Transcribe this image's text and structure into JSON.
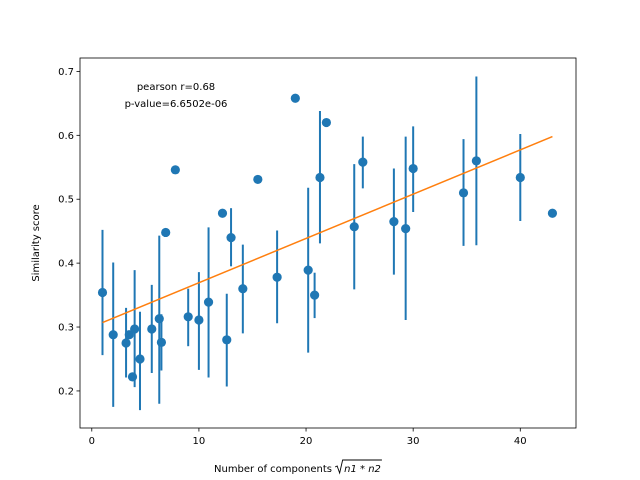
{
  "chart_data": {
    "type": "scatter",
    "xlabel_prefix": "Number of components ",
    "xlabel_radicand": "n1 * n2",
    "ylabel": "Similarity score",
    "annotation_lines": [
      "pearson r=0.68",
      "p-value=6.6502e-06"
    ],
    "xlim": [
      -1.1,
      45.2
    ],
    "ylim": [
      0.142,
      0.721
    ],
    "xticks": [
      0,
      10,
      20,
      30,
      40
    ],
    "xtick_labels": [
      "0",
      "10",
      "20",
      "30",
      "40"
    ],
    "yticks": [
      0.2,
      0.3,
      0.4,
      0.5,
      0.6,
      0.7
    ],
    "ytick_labels": [
      "0.2",
      "0.3",
      "0.4",
      "0.5",
      "0.6",
      "0.7"
    ],
    "grid": false,
    "legend": "none",
    "colors": {
      "points": "#1f77b4",
      "fit": "#ff7f0e"
    },
    "fit_line": {
      "x": [
        1.0,
        43.0
      ],
      "y": [
        0.307,
        0.598
      ]
    },
    "points": [
      {
        "x": 1.0,
        "y": 0.354,
        "err_low": 0.256,
        "err_high": 0.452
      },
      {
        "x": 2.0,
        "y": 0.288,
        "err_low": 0.175,
        "err_high": 0.401
      },
      {
        "x": 3.2,
        "y": 0.275,
        "err_low": 0.221,
        "err_high": 0.33
      },
      {
        "x": 3.5,
        "y": 0.288,
        "err_low": null,
        "err_high": null
      },
      {
        "x": 3.8,
        "y": 0.222,
        "err_low": null,
        "err_high": null
      },
      {
        "x": 4.0,
        "y": 0.297,
        "err_low": 0.206,
        "err_high": 0.389
      },
      {
        "x": 4.5,
        "y": 0.25,
        "err_low": 0.17,
        "err_high": 0.324
      },
      {
        "x": 5.6,
        "y": 0.297,
        "err_low": 0.228,
        "err_high": 0.366
      },
      {
        "x": 6.3,
        "y": 0.313,
        "err_low": 0.18,
        "err_high": 0.443
      },
      {
        "x": 6.5,
        "y": 0.276,
        "err_low": 0.232,
        "err_high": 0.32
      },
      {
        "x": 6.9,
        "y": 0.448,
        "err_low": null,
        "err_high": null
      },
      {
        "x": 7.8,
        "y": 0.546,
        "err_low": null,
        "err_high": null
      },
      {
        "x": 9.0,
        "y": 0.316,
        "err_low": 0.27,
        "err_high": 0.36
      },
      {
        "x": 10.0,
        "y": 0.311,
        "err_low": 0.233,
        "err_high": 0.386
      },
      {
        "x": 10.9,
        "y": 0.339,
        "err_low": 0.221,
        "err_high": 0.456
      },
      {
        "x": 12.2,
        "y": 0.478,
        "err_low": null,
        "err_high": null
      },
      {
        "x": 12.6,
        "y": 0.28,
        "err_low": 0.207,
        "err_high": 0.352
      },
      {
        "x": 13.0,
        "y": 0.44,
        "err_low": 0.395,
        "err_high": 0.486
      },
      {
        "x": 14.1,
        "y": 0.36,
        "err_low": 0.29,
        "err_high": 0.429
      },
      {
        "x": 15.5,
        "y": 0.531,
        "err_low": null,
        "err_high": null
      },
      {
        "x": 17.3,
        "y": 0.378,
        "err_low": 0.306,
        "err_high": 0.451
      },
      {
        "x": 19.0,
        "y": 0.658,
        "err_low": null,
        "err_high": null
      },
      {
        "x": 20.2,
        "y": 0.389,
        "err_low": 0.26,
        "err_high": 0.518
      },
      {
        "x": 20.8,
        "y": 0.35,
        "err_low": 0.314,
        "err_high": 0.385
      },
      {
        "x": 21.3,
        "y": 0.534,
        "err_low": 0.431,
        "err_high": 0.638
      },
      {
        "x": 21.9,
        "y": 0.62,
        "err_low": null,
        "err_high": null
      },
      {
        "x": 24.5,
        "y": 0.457,
        "err_low": 0.359,
        "err_high": 0.555
      },
      {
        "x": 25.3,
        "y": 0.558,
        "err_low": 0.517,
        "err_high": 0.598
      },
      {
        "x": 28.2,
        "y": 0.465,
        "err_low": 0.382,
        "err_high": 0.548
      },
      {
        "x": 29.3,
        "y": 0.454,
        "err_low": 0.311,
        "err_high": 0.598
      },
      {
        "x": 30.0,
        "y": 0.548,
        "err_low": 0.48,
        "err_high": 0.614
      },
      {
        "x": 34.7,
        "y": 0.51,
        "err_low": 0.427,
        "err_high": 0.594
      },
      {
        "x": 35.9,
        "y": 0.56,
        "err_low": 0.428,
        "err_high": 0.692
      },
      {
        "x": 40.0,
        "y": 0.534,
        "err_low": 0.466,
        "err_high": 0.602
      },
      {
        "x": 43.0,
        "y": 0.478,
        "err_low": null,
        "err_high": null
      }
    ]
  }
}
